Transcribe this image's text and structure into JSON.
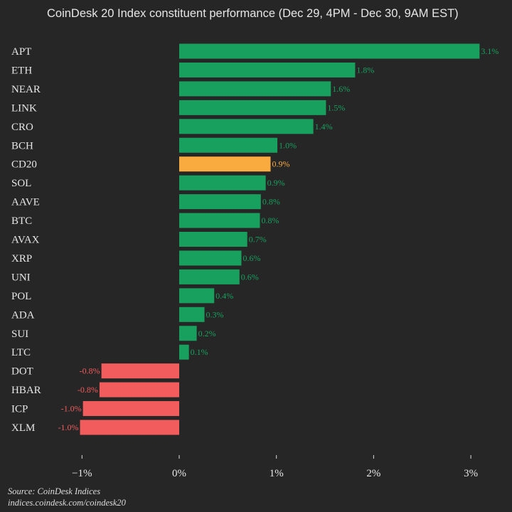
{
  "chart_data": {
    "type": "bar",
    "orientation": "horizontal",
    "title": "CoinDesk 20 Index constituent performance (Dec 29, 4PM - Dec 30, 9AM EST)",
    "categories": [
      "APT",
      "ETH",
      "NEAR",
      "LINK",
      "CRO",
      "BCH",
      "CD20",
      "SOL",
      "AAVE",
      "BTC",
      "AVAX",
      "XRP",
      "UNI",
      "POL",
      "ADA",
      "SUI",
      "LTC",
      "DOT",
      "HBAR",
      "ICP",
      "XLM"
    ],
    "values": [
      3.09,
      1.81,
      1.56,
      1.51,
      1.38,
      1.01,
      0.94,
      0.89,
      0.84,
      0.83,
      0.7,
      0.64,
      0.62,
      0.36,
      0.26,
      0.18,
      0.1,
      -0.8,
      -0.82,
      -0.99,
      -1.02
    ],
    "labels": [
      "3.1%",
      "1.8%",
      "1.6%",
      "1.5%",
      "1.4%",
      "1.0%",
      "0.9%",
      "0.9%",
      "0.8%",
      "0.8%",
      "0.7%",
      "0.6%",
      "0.6%",
      "0.4%",
      "0.3%",
      "0.2%",
      "0.1%",
      "-0.8%",
      "-0.8%",
      "-1.0%",
      "-1.0%"
    ],
    "highlight": "CD20",
    "xlim": [
      -1.0,
      3.0
    ],
    "xticks": [
      -1,
      0,
      1,
      2,
      3
    ],
    "xtick_labels": [
      "−1%",
      "0%",
      "1%",
      "2%",
      "3%"
    ],
    "grid": false,
    "colors": {
      "positive": "#18a05e",
      "negative": "#f25c5c",
      "highlight": "#f9ab40",
      "background": "#262626"
    }
  },
  "footer": {
    "source": "Source: CoinDesk Indices",
    "url": "indices.coindesk.com/coindesk20"
  }
}
